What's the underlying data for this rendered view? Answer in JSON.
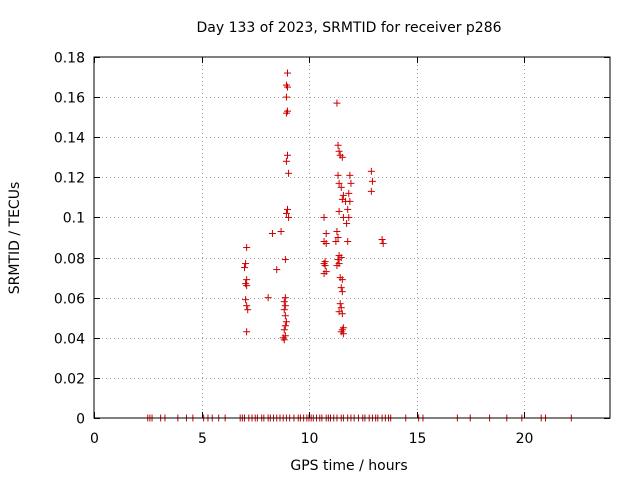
{
  "chart_data": {
    "type": "scatter",
    "title": "Day 133 of 2023, SRMTID for receiver p286",
    "xlabel": "GPS time / hours",
    "ylabel": "SRMTID / TECUs",
    "xlim": [
      0,
      24
    ],
    "ylim": [
      0,
      0.18
    ],
    "xticks": [
      0,
      5,
      10,
      15,
      20
    ],
    "xtick_labels": [
      "0",
      "5",
      "10",
      "15",
      "20"
    ],
    "yticks": [
      0,
      0.02,
      0.04,
      0.06,
      0.08,
      0.1,
      0.12,
      0.14,
      0.16,
      0.18
    ],
    "ytick_labels": [
      "0",
      "0.02",
      "0.04",
      "0.06",
      "0.08",
      "0.1",
      "0.12",
      "0.14",
      "0.16",
      "0.18"
    ],
    "grid": true,
    "marker": "+",
    "color": "#cc0000",
    "series": [
      {
        "name": "SRMTID",
        "points": [
          [
            7.1,
            0.085
          ],
          [
            7.05,
            0.077
          ],
          [
            7.0,
            0.075
          ],
          [
            7.1,
            0.069
          ],
          [
            7.05,
            0.067
          ],
          [
            7.1,
            0.066
          ],
          [
            7.05,
            0.059
          ],
          [
            7.1,
            0.056
          ],
          [
            7.15,
            0.054
          ],
          [
            7.1,
            0.043
          ],
          [
            8.1,
            0.06
          ],
          [
            8.3,
            0.092
          ],
          [
            8.5,
            0.074
          ],
          [
            8.7,
            0.093
          ],
          [
            9.0,
            0.172
          ],
          [
            8.95,
            0.166
          ],
          [
            9.0,
            0.165
          ],
          [
            8.95,
            0.16
          ],
          [
            9.0,
            0.153
          ],
          [
            8.95,
            0.152
          ],
          [
            9.0,
            0.131
          ],
          [
            8.95,
            0.128
          ],
          [
            9.05,
            0.122
          ],
          [
            9.0,
            0.104
          ],
          [
            9.05,
            0.1
          ],
          [
            8.95,
            0.102
          ],
          [
            8.9,
            0.079
          ],
          [
            8.9,
            0.06
          ],
          [
            8.85,
            0.058
          ],
          [
            8.9,
            0.056
          ],
          [
            8.85,
            0.054
          ],
          [
            8.9,
            0.051
          ],
          [
            8.95,
            0.048
          ],
          [
            8.9,
            0.046
          ],
          [
            8.85,
            0.044
          ],
          [
            8.9,
            0.041
          ],
          [
            8.8,
            0.04
          ],
          [
            8.85,
            0.039
          ],
          [
            10.7,
            0.1
          ],
          [
            10.8,
            0.092
          ],
          [
            10.7,
            0.088
          ],
          [
            10.8,
            0.087
          ],
          [
            10.75,
            0.078
          ],
          [
            10.7,
            0.077
          ],
          [
            10.75,
            0.076
          ],
          [
            10.8,
            0.073
          ],
          [
            10.7,
            0.072
          ],
          [
            11.3,
            0.157
          ],
          [
            11.35,
            0.136
          ],
          [
            11.4,
            0.133
          ],
          [
            11.45,
            0.131
          ],
          [
            11.55,
            0.13
          ],
          [
            11.35,
            0.121
          ],
          [
            11.4,
            0.117
          ],
          [
            11.5,
            0.115
          ],
          [
            11.6,
            0.111
          ],
          [
            11.55,
            0.109
          ],
          [
            11.7,
            0.108
          ],
          [
            11.4,
            0.103
          ],
          [
            11.6,
            0.1
          ],
          [
            11.3,
            0.093
          ],
          [
            11.35,
            0.09
          ],
          [
            11.25,
            0.088
          ],
          [
            11.4,
            0.081
          ],
          [
            11.5,
            0.08
          ],
          [
            11.35,
            0.079
          ],
          [
            11.4,
            0.077
          ],
          [
            11.3,
            0.076
          ],
          [
            11.45,
            0.07
          ],
          [
            11.55,
            0.069
          ],
          [
            11.5,
            0.065
          ],
          [
            11.55,
            0.063
          ],
          [
            11.45,
            0.057
          ],
          [
            11.5,
            0.055
          ],
          [
            11.4,
            0.053
          ],
          [
            11.55,
            0.052
          ],
          [
            11.6,
            0.045
          ],
          [
            11.5,
            0.043
          ],
          [
            11.55,
            0.044
          ],
          [
            11.6,
            0.042
          ],
          [
            11.9,
            0.121
          ],
          [
            11.95,
            0.117
          ],
          [
            11.85,
            0.112
          ],
          [
            11.9,
            0.108
          ],
          [
            11.8,
            0.104
          ],
          [
            11.85,
            0.1
          ],
          [
            11.75,
            0.097
          ],
          [
            11.8,
            0.088
          ],
          [
            12.9,
            0.123
          ],
          [
            12.95,
            0.118
          ],
          [
            12.9,
            0.113
          ],
          [
            13.4,
            0.089
          ],
          [
            13.45,
            0.087
          ],
          [
            2.5,
            0
          ],
          [
            2.6,
            0
          ],
          [
            2.7,
            0
          ],
          [
            3.1,
            0
          ],
          [
            3.3,
            0
          ],
          [
            3.9,
            0
          ],
          [
            4.3,
            0
          ],
          [
            4.6,
            0
          ],
          [
            5.1,
            0
          ],
          [
            5.3,
            0
          ],
          [
            5.5,
            0
          ],
          [
            5.8,
            0
          ],
          [
            6.1,
            0
          ],
          [
            6.8,
            0
          ],
          [
            6.9,
            0
          ],
          [
            7.0,
            0
          ],
          [
            7.2,
            0
          ],
          [
            7.35,
            0
          ],
          [
            7.5,
            0
          ],
          [
            7.6,
            0
          ],
          [
            7.8,
            0
          ],
          [
            7.9,
            0
          ],
          [
            8.1,
            0
          ],
          [
            8.2,
            0
          ],
          [
            8.35,
            0
          ],
          [
            8.5,
            0
          ],
          [
            8.65,
            0
          ],
          [
            8.8,
            0
          ],
          [
            8.95,
            0
          ],
          [
            9.1,
            0
          ],
          [
            9.3,
            0
          ],
          [
            9.5,
            0
          ],
          [
            9.6,
            0
          ],
          [
            9.75,
            0
          ],
          [
            9.9,
            0
          ],
          [
            10.0,
            0
          ],
          [
            10.1,
            0
          ],
          [
            10.2,
            0
          ],
          [
            10.35,
            0
          ],
          [
            10.5,
            0
          ],
          [
            10.6,
            0
          ],
          [
            10.8,
            0
          ],
          [
            10.9,
            0
          ],
          [
            11.0,
            0
          ],
          [
            11.15,
            0
          ],
          [
            11.3,
            0
          ],
          [
            11.5,
            0
          ],
          [
            11.6,
            0
          ],
          [
            11.8,
            0
          ],
          [
            11.95,
            0
          ],
          [
            12.1,
            0
          ],
          [
            12.3,
            0
          ],
          [
            12.5,
            0
          ],
          [
            12.6,
            0
          ],
          [
            12.8,
            0
          ],
          [
            12.95,
            0
          ],
          [
            13.1,
            0
          ],
          [
            13.2,
            0
          ],
          [
            13.4,
            0
          ],
          [
            13.55,
            0
          ],
          [
            13.7,
            0
          ],
          [
            13.8,
            0
          ],
          [
            14.5,
            0
          ],
          [
            15.1,
            0
          ],
          [
            15.3,
            0
          ],
          [
            16.9,
            0
          ],
          [
            17.5,
            0
          ],
          [
            18.4,
            0
          ],
          [
            19.2,
            0
          ],
          [
            19.9,
            0
          ],
          [
            20.8,
            0
          ],
          [
            21.0,
            0
          ],
          [
            22.2,
            0
          ]
        ]
      }
    ]
  }
}
